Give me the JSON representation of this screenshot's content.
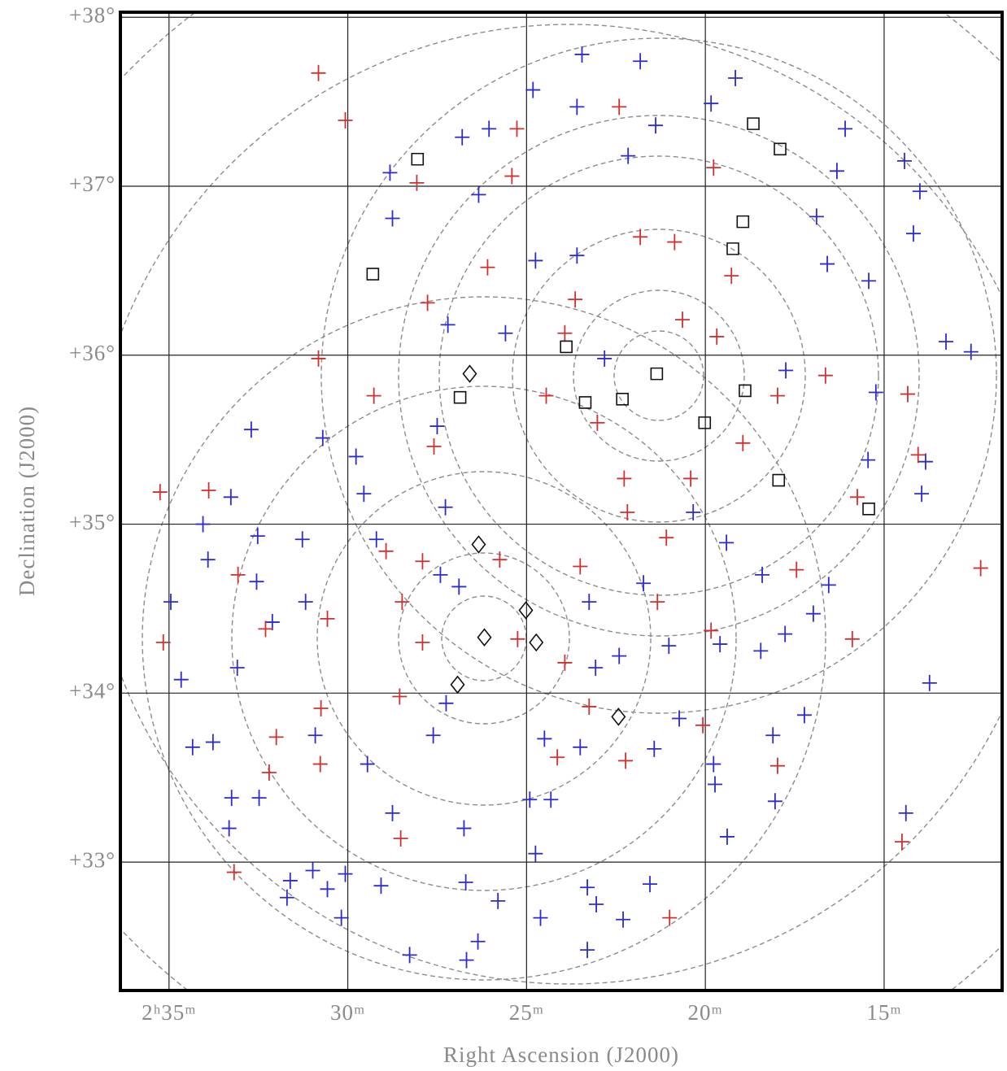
{
  "chart_data": {
    "type": "scatter",
    "xlabel": "Right Ascension (J2000)",
    "ylabel": "Declination (J2000)",
    "xlim": [
      36.36,
      11.7
    ],
    "ylim": [
      32.24,
      38.03
    ],
    "xticks": [
      {
        "value": 35,
        "label": "2ʰ35ᵐ"
      },
      {
        "value": 30,
        "label": "30ᵐ"
      },
      {
        "value": 25,
        "label": "25ᵐ"
      },
      {
        "value": 20,
        "label": "20ᵐ"
      },
      {
        "value": 15,
        "label": "15ᵐ"
      }
    ],
    "yticks": [
      {
        "value": 38,
        "label": "+38°"
      },
      {
        "value": 37,
        "label": "+37°"
      },
      {
        "value": 36,
        "label": "+36°"
      },
      {
        "value": 35,
        "label": "+35°"
      },
      {
        "value": 34,
        "label": "+34°"
      },
      {
        "value": 33,
        "label": "+33°"
      }
    ],
    "grid": true,
    "series": [
      {
        "color": "#2b2bd0",
        "marker": "plus",
        "x": [
          23.45,
          21.82,
          19.16,
          24.82,
          23.59,
          19.84,
          26.05,
          26.8,
          21.39,
          16.09,
          14.43,
          28.82,
          26.34,
          22.16,
          16.32,
          14.0,
          28.75,
          16.89,
          14.18,
          24.75,
          23.59,
          16.59,
          15.43,
          27.2,
          25.59,
          13.27,
          12.57,
          22.82,
          17.75,
          15.23,
          27.5,
          32.7,
          30.7,
          29.77,
          15.45,
          13.84,
          13.95,
          29.55,
          33.27,
          27.27,
          20.34,
          34.05,
          32.52,
          31.27,
          29.2,
          19.41,
          18.41,
          16.55,
          27.41,
          26.89,
          21.73,
          33.91,
          32.55,
          31.18,
          23.25,
          34.95,
          16.98,
          32.11,
          19.59,
          21.02,
          17.77,
          22.41,
          23.07,
          33.09,
          18.45,
          13.73,
          34.66,
          27.25,
          17.23,
          20.73,
          27.61,
          18.11,
          34.34,
          33.77,
          30.91,
          24.5,
          23.5,
          21.43,
          19.77,
          19.73,
          18.05,
          14.39,
          19.39,
          29.45,
          33.25,
          32.48,
          24.91,
          24.32,
          28.75,
          33.32,
          26.75,
          24.75,
          30.98,
          31.61,
          30.07,
          31.7,
          30.57,
          30.18,
          29.07,
          26.7,
          23.3,
          23.05,
          25.8,
          21.55,
          24.61,
          22.3,
          26.36,
          23.3,
          26.68,
          28.27
        ],
        "y": [
          37.78,
          37.74,
          37.64,
          37.57,
          37.47,
          37.49,
          37.34,
          37.29,
          37.36,
          37.34,
          37.15,
          37.08,
          36.95,
          37.18,
          37.09,
          36.97,
          36.81,
          36.82,
          36.72,
          36.56,
          36.59,
          36.54,
          36.44,
          36.18,
          36.13,
          36.08,
          36.02,
          35.98,
          35.91,
          35.78,
          35.58,
          35.56,
          35.51,
          35.4,
          35.38,
          35.37,
          35.18,
          35.18,
          35.16,
          35.1,
          35.07,
          35.0,
          34.93,
          34.91,
          34.91,
          34.89,
          34.7,
          34.64,
          34.7,
          34.63,
          34.65,
          34.79,
          34.66,
          34.54,
          34.54,
          34.54,
          34.47,
          34.42,
          34.29,
          34.28,
          34.35,
          34.22,
          34.15,
          34.15,
          34.25,
          34.06,
          34.08,
          33.94,
          33.87,
          33.85,
          33.75,
          33.75,
          33.68,
          33.71,
          33.75,
          33.73,
          33.68,
          33.67,
          33.58,
          33.46,
          33.36,
          33.29,
          33.15,
          33.58,
          33.38,
          33.38,
          33.37,
          33.37,
          33.29,
          33.2,
          33.2,
          33.05,
          32.95,
          32.89,
          32.93,
          32.79,
          32.84,
          32.67,
          32.86,
          32.88,
          32.85,
          32.75,
          32.77,
          32.87,
          32.67,
          32.66,
          32.53,
          32.48,
          32.42,
          32.45
        ]
      },
      {
        "color": "#d03030",
        "marker": "plus",
        "x": [
          30.82,
          30.07,
          22.41,
          25.27,
          19.77,
          28.07,
          25.41,
          21.82,
          20.86,
          19.27,
          26.09,
          27.77,
          23.64,
          20.64,
          19.68,
          23.93,
          30.82,
          29.27,
          24.45,
          17.98,
          16.64,
          14.34,
          27.59,
          23.02,
          22.27,
          20.41,
          18.95,
          35.25,
          33.89,
          14.05,
          15.75,
          22.18,
          21.09,
          28.93,
          27.91,
          25.75,
          23.5,
          28.48,
          27.91,
          25.25,
          23.93,
          21.34,
          19.84,
          30.57,
          32.3,
          33.07,
          12.3,
          17.45,
          15.89,
          35.16,
          28.55,
          30.75,
          23.25,
          20.07,
          30.77,
          32.0,
          32.2,
          24.14,
          22.23,
          17.98,
          28.52,
          14.5,
          33.18,
          21.0
        ],
        "y": [
          37.67,
          37.39,
          37.47,
          37.34,
          37.11,
          37.02,
          37.06,
          36.7,
          36.67,
          36.47,
          36.52,
          36.31,
          36.33,
          36.21,
          36.11,
          36.13,
          35.98,
          35.76,
          35.76,
          35.76,
          35.88,
          35.77,
          35.46,
          35.6,
          35.27,
          35.27,
          35.48,
          35.19,
          35.2,
          35.41,
          35.16,
          35.07,
          34.92,
          34.84,
          34.78,
          34.79,
          34.75,
          34.54,
          34.3,
          34.32,
          34.18,
          34.54,
          34.37,
          34.44,
          34.38,
          34.7,
          34.74,
          34.73,
          34.32,
          34.3,
          33.98,
          33.91,
          33.92,
          33.81,
          33.58,
          33.74,
          33.53,
          33.62,
          33.6,
          33.57,
          33.14,
          33.12,
          32.94,
          32.67
        ]
      },
      {
        "color": "#111111",
        "marker": "square",
        "x": [
          28.05,
          18.66,
          17.91,
          29.3,
          18.95,
          19.23,
          23.89,
          21.36,
          26.86,
          23.36,
          22.32,
          18.89,
          20.02,
          17.95,
          15.43
        ],
        "y": [
          37.16,
          37.37,
          37.22,
          36.48,
          36.79,
          36.63,
          36.05,
          35.89,
          35.75,
          35.72,
          35.74,
          35.79,
          35.6,
          35.26,
          35.09
        ]
      },
      {
        "color": "#111111",
        "marker": "diamond",
        "x": [
          26.59,
          26.34,
          25.02,
          26.18,
          24.73,
          26.93,
          22.43
        ],
        "y": [
          35.89,
          34.88,
          34.49,
          34.33,
          34.3,
          34.05,
          33.86
        ]
      }
    ]
  }
}
